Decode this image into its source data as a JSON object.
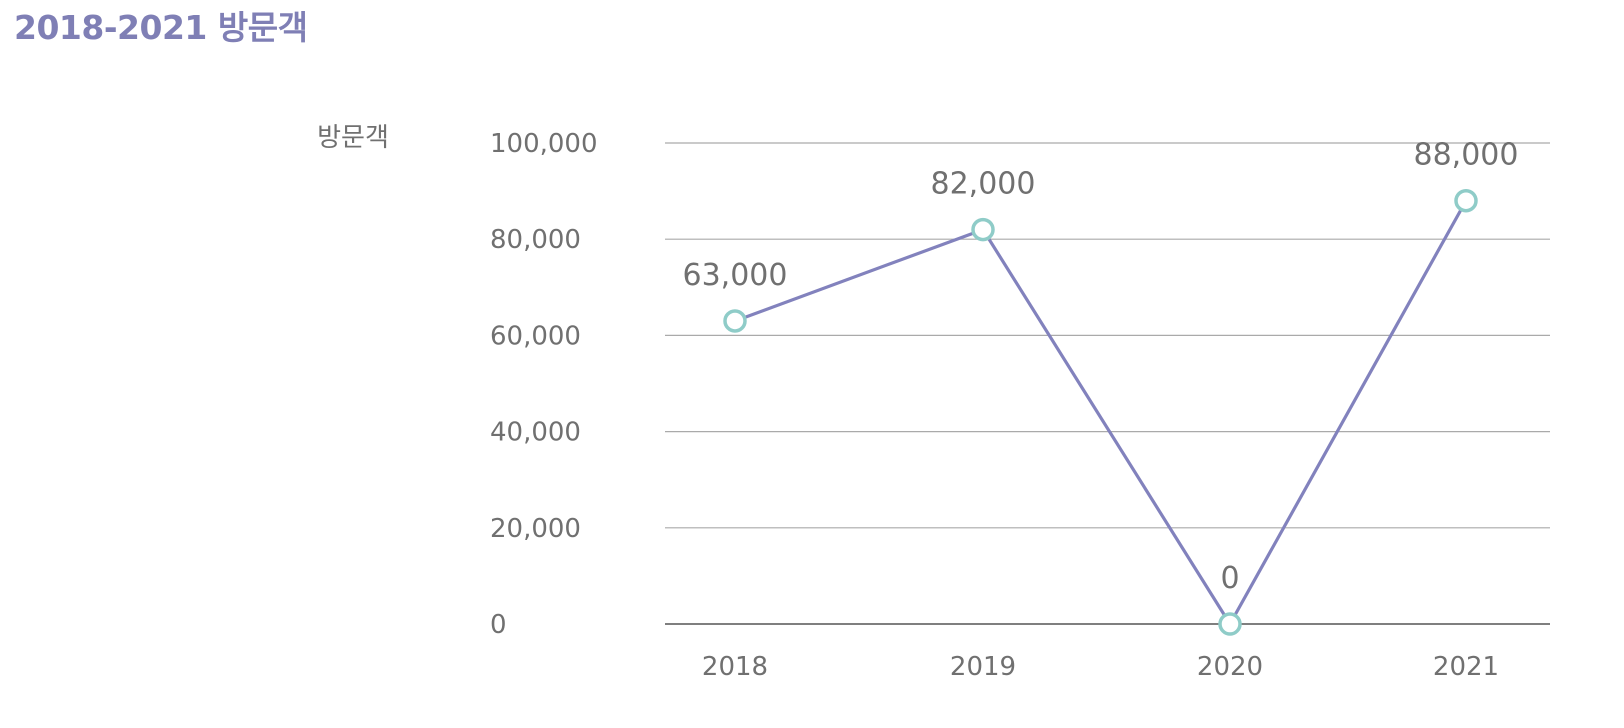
{
  "title": "2018-2021 방문객",
  "colors": {
    "title": "#7f7fb5",
    "line": "#8282bd",
    "marker_stroke": "#8fccc8",
    "marker_fill": "#ffffff",
    "grid": "#aaaaaa",
    "baseline": "#555555",
    "text": "#707070"
  },
  "chart_data": {
    "type": "line",
    "categories": [
      "2018",
      "2019",
      "2020",
      "2021"
    ],
    "values": [
      63000,
      82000,
      0,
      88000
    ],
    "data_labels": [
      "63,000",
      "82,000",
      "0",
      "88,000"
    ],
    "title": "2018-2021 방문객",
    "xlabel": "",
    "ylabel": "방문객",
    "ylim": [
      0,
      100000
    ],
    "yticks": [
      0,
      20000,
      40000,
      60000,
      80000,
      100000
    ],
    "ytick_labels": [
      "0",
      "20,000",
      "40,000",
      "60,000",
      "80,000",
      "100,000"
    ],
    "grid": true,
    "markers": "hollow-circle"
  }
}
